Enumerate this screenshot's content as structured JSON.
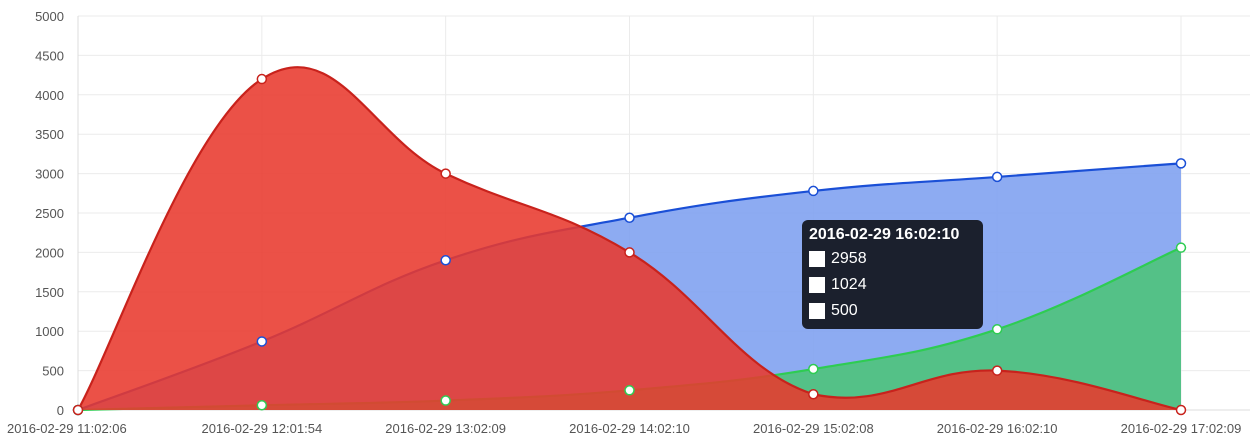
{
  "chart_data": {
    "type": "area",
    "title": "",
    "xlabel": "",
    "ylabel": "",
    "x": [
      "2016-02-29 11:02:06",
      "2016-02-29 12:01:54",
      "2016-02-29 13:02:09",
      "2016-02-29 14:02:10",
      "2016-02-29 15:02:08",
      "2016-02-29 16:02:10",
      "2016-02-29 17:02:09"
    ],
    "ylim": [
      0,
      5000
    ],
    "yticks": [
      0,
      500,
      1000,
      1500,
      2000,
      2500,
      3000,
      3500,
      4000,
      4500,
      5000
    ],
    "grid": true,
    "series": [
      {
        "values": [
          0,
          870,
          1900,
          2440,
          2780,
          2958,
          3130
        ],
        "color": "#1a4fd6",
        "fill": "#7d9ff0"
      },
      {
        "values": [
          0,
          60,
          120,
          250,
          520,
          1024,
          2060
        ],
        "color": "#2ecc52",
        "fill": "#4cc477"
      },
      {
        "values": [
          0,
          4200,
          3000,
          2000,
          200,
          500,
          0
        ],
        "color": "#c8221c",
        "fill": "#e8392e"
      }
    ],
    "tooltip": {
      "title": "2016-02-29 16:02:10",
      "rows": [
        "2958",
        "1024",
        "500"
      ]
    }
  }
}
